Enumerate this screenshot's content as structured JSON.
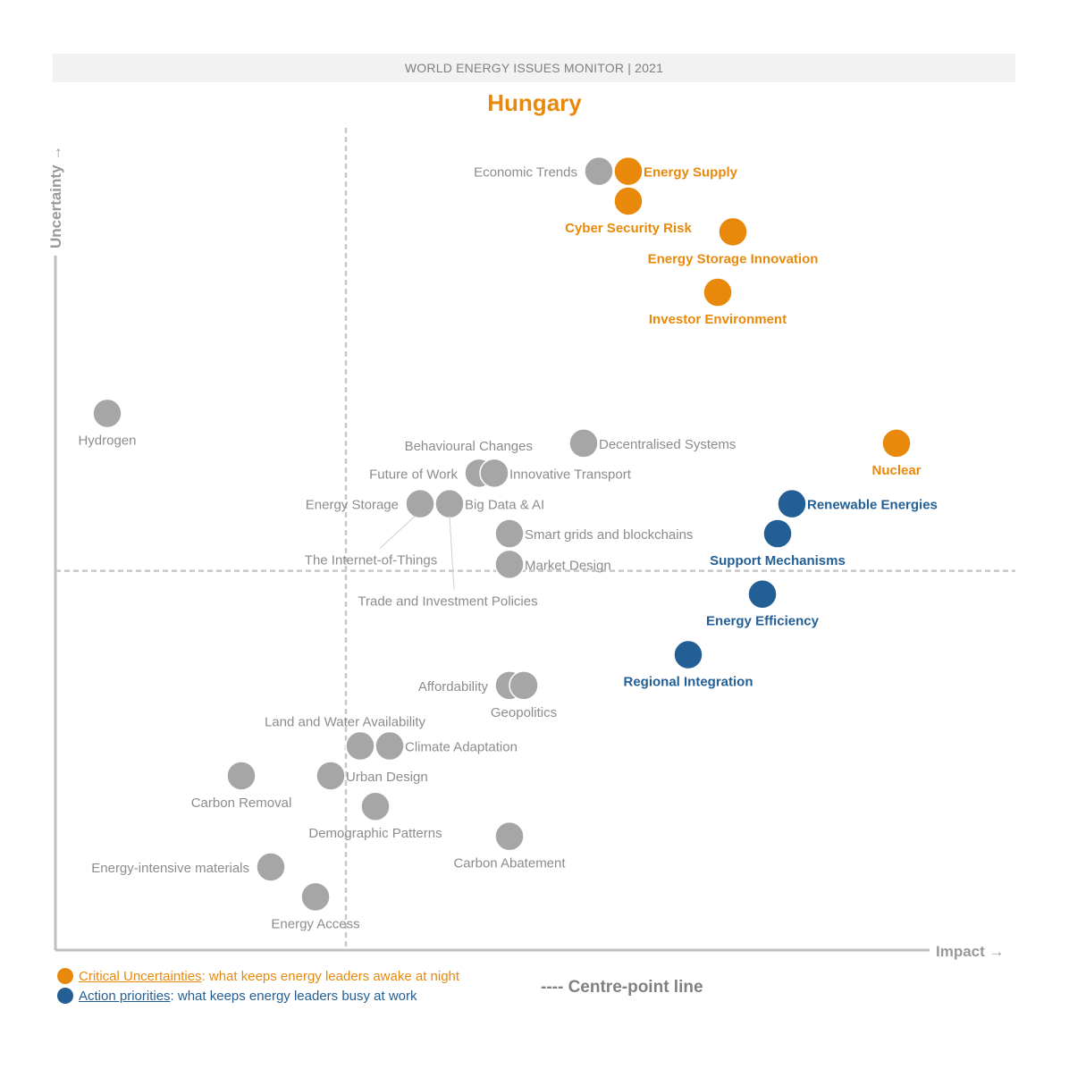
{
  "header": {
    "banner": "WORLD ENERGY ISSUES MONITOR | 2021",
    "country": "Hungary"
  },
  "legend": {
    "critical_key": "Critical Uncertainties",
    "critical_text": ": what keeps energy leaders awake at night",
    "action_key": "Action priorities",
    "action_text": ": what keeps energy leaders busy at work",
    "centre_line": "---- Centre-point line"
  },
  "colors": {
    "critical": "#e8890c",
    "action": "#235f95",
    "other": "#a6a6a6",
    "other_text": "#8c8c8c",
    "axis": "#bfbfbf"
  },
  "chart_data": {
    "type": "scatter",
    "title": "Hungary",
    "xlabel": "Impact",
    "ylabel": "Uncertainty",
    "xlim": [
      0,
      1
    ],
    "ylim": [
      0,
      1
    ],
    "centre": {
      "x": 0.325,
      "y": 0.47
    },
    "points": [
      {
        "name": "Economic Trends",
        "x": 0.608,
        "y": 0.965,
        "group": "other",
        "pos": "left"
      },
      {
        "name": "Energy Supply",
        "x": 0.641,
        "y": 0.965,
        "group": "critical",
        "pos": "right"
      },
      {
        "name": "Cyber Security Risk",
        "x": 0.641,
        "y": 0.928,
        "group": "critical",
        "pos": "below"
      },
      {
        "name": "Energy Storage Innovation",
        "x": 0.758,
        "y": 0.89,
        "group": "critical",
        "pos": "below"
      },
      {
        "name": "Investor Environment",
        "x": 0.741,
        "y": 0.815,
        "group": "critical",
        "pos": "below"
      },
      {
        "name": "Hydrogen",
        "x": 0.058,
        "y": 0.665,
        "group": "other",
        "pos": "below"
      },
      {
        "name": "Decentralised Systems",
        "x": 0.591,
        "y": 0.628,
        "group": "other",
        "pos": "right"
      },
      {
        "name": "Behavioural Changes",
        "x": 0.591,
        "y": 0.628,
        "group": "other",
        "pos": "farleft"
      },
      {
        "name": "Nuclear",
        "x": 0.941,
        "y": 0.628,
        "group": "critical",
        "pos": "below"
      },
      {
        "name": "Future of Work",
        "x": 0.474,
        "y": 0.591,
        "group": "other",
        "pos": "left"
      },
      {
        "name": "Innovative Transport",
        "x": 0.491,
        "y": 0.591,
        "group": "other",
        "pos": "right"
      },
      {
        "name": "Renewable Energies",
        "x": 0.824,
        "y": 0.553,
        "group": "action",
        "pos": "right"
      },
      {
        "name": "Energy Storage",
        "x": 0.408,
        "y": 0.553,
        "group": "other",
        "pos": "left"
      },
      {
        "name": "Big Data & AI",
        "x": 0.441,
        "y": 0.553,
        "group": "other",
        "pos": "right"
      },
      {
        "name": "Smart grids and blockchains",
        "x": 0.508,
        "y": 0.516,
        "group": "other",
        "pos": "right"
      },
      {
        "name": "Support Mechanisms",
        "x": 0.808,
        "y": 0.516,
        "group": "action",
        "pos": "below"
      },
      {
        "name": "Market Design",
        "x": 0.508,
        "y": 0.478,
        "group": "other",
        "pos": "right"
      },
      {
        "name": "The Internet-of-Things",
        "x": 0.408,
        "y": 0.553,
        "group": "other",
        "pos": "leader1"
      },
      {
        "name": "Trade and Investment Policies",
        "x": 0.441,
        "y": 0.553,
        "group": "other",
        "pos": "leader2"
      },
      {
        "name": "Energy Efficiency",
        "x": 0.791,
        "y": 0.441,
        "group": "action",
        "pos": "below"
      },
      {
        "name": "Regional Integration",
        "x": 0.708,
        "y": 0.366,
        "group": "action",
        "pos": "below"
      },
      {
        "name": "Affordability",
        "x": 0.508,
        "y": 0.328,
        "group": "other",
        "pos": "left"
      },
      {
        "name": "Geopolitics",
        "x": 0.524,
        "y": 0.328,
        "group": "other",
        "pos": "below"
      },
      {
        "name": "Land and Water Availability",
        "x": 0.341,
        "y": 0.253,
        "group": "other",
        "pos": "above"
      },
      {
        "name": "Climate Adaptation",
        "x": 0.374,
        "y": 0.253,
        "group": "other",
        "pos": "right"
      },
      {
        "name": "Carbon Removal",
        "x": 0.208,
        "y": 0.216,
        "group": "other",
        "pos": "below"
      },
      {
        "name": "Urban Design",
        "x": 0.308,
        "y": 0.216,
        "group": "other",
        "pos": "right"
      },
      {
        "name": "Demographic Patterns",
        "x": 0.358,
        "y": 0.178,
        "group": "other",
        "pos": "below"
      },
      {
        "name": "Carbon Abatement",
        "x": 0.508,
        "y": 0.141,
        "group": "other",
        "pos": "below"
      },
      {
        "name": "Energy-intensive materials",
        "x": 0.241,
        "y": 0.103,
        "group": "other",
        "pos": "left"
      },
      {
        "name": "Energy Access",
        "x": 0.291,
        "y": 0.066,
        "group": "other",
        "pos": "below"
      }
    ]
  }
}
